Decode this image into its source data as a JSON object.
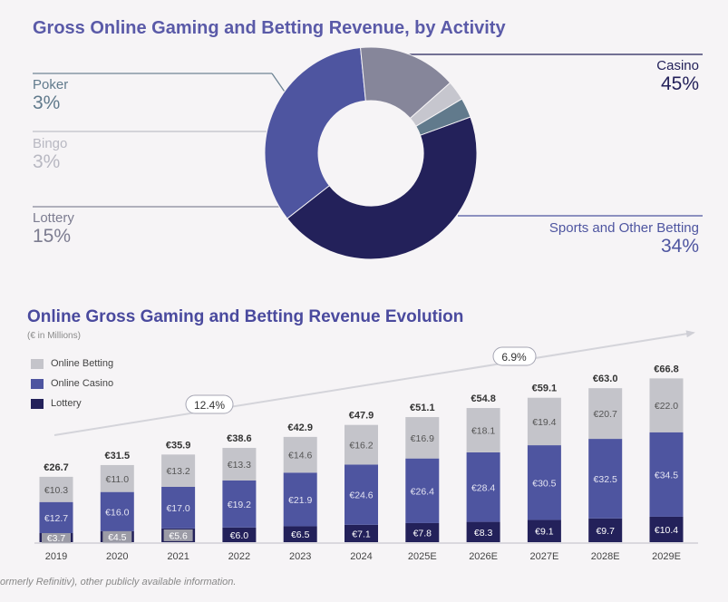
{
  "donut": {
    "title": "Gross Online Gaming and Betting Revenue, by Activity",
    "labels": {
      "poker": {
        "name": "Poker",
        "pct": "3%"
      },
      "bingo": {
        "name": "Bingo",
        "pct": "3%"
      },
      "lottery": {
        "name": "Lottery",
        "pct": "15%"
      },
      "casino": {
        "name": "Casino",
        "pct": "45%"
      },
      "sports": {
        "name": "Sports and Other Betting",
        "pct": "34%"
      }
    }
  },
  "bars": {
    "title": "Online Gross Gaming and Betting Revenue Evolution",
    "subtitle": "(€ in Millions)",
    "legend": [
      "Online Betting",
      "Online Casino",
      "Lottery"
    ],
    "cagr": {
      "first": "12.4%",
      "second": "6.9%"
    }
  },
  "footnote": "ormerly Refinitiv), other publicly available information.",
  "chart_data": [
    {
      "type": "pie",
      "title": "Gross Online Gaming and Betting Revenue, by Activity",
      "categories": [
        "Casino",
        "Sports and Other Betting",
        "Lottery",
        "Bingo",
        "Poker"
      ],
      "values": [
        45,
        34,
        15,
        3,
        3
      ],
      "colors": [
        "#23215a",
        "#4e55a0",
        "#86869a",
        "#c6c6ce",
        "#617a8c"
      ]
    },
    {
      "type": "bar",
      "stacked": true,
      "title": "Online Gross Gaming and Betting Revenue Evolution",
      "ylabel": "(€ in Millions)",
      "categories": [
        "2019",
        "2020",
        "2021",
        "2022",
        "2023",
        "2024",
        "2025E",
        "2026E",
        "2027E",
        "2028E",
        "2029E"
      ],
      "series": [
        {
          "name": "Lottery",
          "color": "#23215a",
          "values": [
            3.7,
            4.5,
            5.6,
            6.0,
            6.5,
            7.1,
            7.8,
            8.3,
            9.1,
            9.7,
            10.4
          ],
          "labels": [
            "€3.7",
            "€4.5",
            "€5.6",
            "€6.0",
            "€6.5",
            "€7.1",
            "€7.8",
            "€8.3",
            "€9.1",
            "€9.7",
            "€10.4"
          ]
        },
        {
          "name": "Online Casino",
          "color": "#4e55a0",
          "values": [
            12.7,
            16.0,
            17.0,
            19.2,
            21.9,
            24.6,
            26.4,
            28.4,
            30.5,
            32.5,
            34.5
          ],
          "labels": [
            "€12.7",
            "€16.0",
            "€17.0",
            "€19.2",
            "€21.9",
            "€24.6",
            "€26.4",
            "€28.4",
            "€30.5",
            "€32.5",
            "€34.5"
          ]
        },
        {
          "name": "Online Betting",
          "color": "#c4c4ca",
          "values": [
            10.3,
            11.0,
            13.2,
            13.3,
            14.6,
            16.2,
            16.9,
            18.1,
            19.4,
            20.7,
            22.0
          ],
          "labels": [
            "€10.3",
            "€11.0",
            "€13.2",
            "€13.3",
            "€14.6",
            "€16.2",
            "€16.9",
            "€18.1",
            "€19.4",
            "€20.7",
            "€22.0"
          ]
        }
      ],
      "totals": [
        26.7,
        31.5,
        35.9,
        38.6,
        42.9,
        47.9,
        51.1,
        54.8,
        59.1,
        63.0,
        66.8
      ],
      "total_labels": [
        "€26.7",
        "€31.5",
        "€35.9",
        "€38.6",
        "€42.9",
        "€47.9",
        "€51.1",
        "€54.8",
        "€59.1",
        "€63.0",
        "€66.8"
      ],
      "annotations": [
        "12.4%",
        "6.9%"
      ],
      "ylim": [
        0,
        70
      ]
    }
  ]
}
